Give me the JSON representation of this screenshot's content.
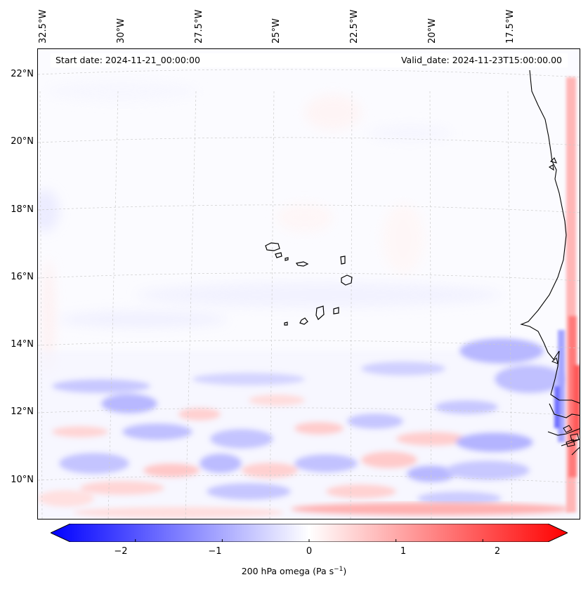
{
  "map": {
    "longitude_labels": [
      "32.5°W",
      "30°W",
      "27.5°W",
      "25°W",
      "22.5°W",
      "20°W",
      "17.5°W"
    ],
    "latitude_labels": [
      "22°N",
      "20°N",
      "18°N",
      "16°N",
      "14°N",
      "12°N",
      "10°N"
    ],
    "start_date": "Start date: 2024-11-21_00:00:00",
    "valid_date": "Valid_date: 2024-11-23T15:00:00.00",
    "colors": {
      "coast": "#000000",
      "grid": "#cccccc",
      "negative": "#0000ff",
      "positive": "#ff0000",
      "neutral": "#ffffff"
    }
  },
  "colorbar": {
    "ticks": [
      "−2",
      "−1",
      "0",
      "1",
      "2"
    ],
    "tick_values": [
      -2,
      -1,
      0,
      1,
      2
    ],
    "range": [
      -2.75,
      2.75
    ],
    "title_text": "200 hPa omega (Pa s",
    "title_sup": "−1",
    "title_close": ")"
  }
}
